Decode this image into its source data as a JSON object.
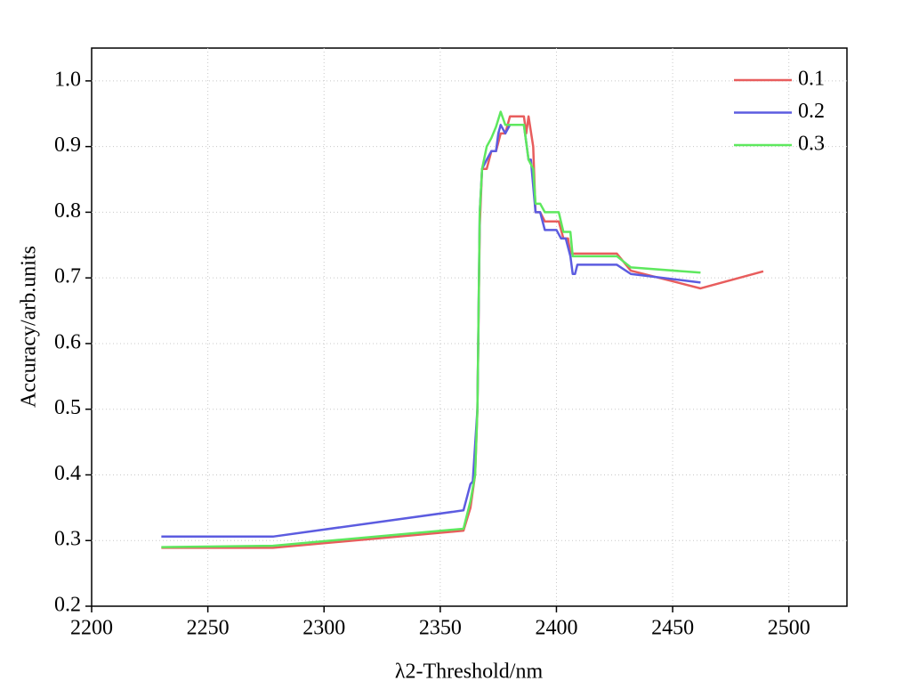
{
  "chart_data": {
    "type": "line",
    "xlabel": "λ2-Threshold/nm",
    "ylabel": "Accuracy/arb.units",
    "xlim": [
      2200,
      2525
    ],
    "ylim": [
      0.2,
      1.05
    ],
    "xticks": [
      2200,
      2250,
      2300,
      2350,
      2400,
      2450,
      2500
    ],
    "yticks": [
      {
        "value": 0.2,
        "label": "0.2"
      },
      {
        "value": 0.3,
        "label": "0.3"
      },
      {
        "value": 0.4,
        "label": "0.4"
      },
      {
        "value": 0.5,
        "label": "0.5"
      },
      {
        "value": 0.6,
        "label": "0.6"
      },
      {
        "value": 0.7,
        "label": "0.7"
      },
      {
        "value": 0.8,
        "label": "0.8"
      },
      {
        "value": 0.9,
        "label": "0.9"
      },
      {
        "value": 1.0,
        "label": "1.0"
      }
    ],
    "grid": true,
    "legend": "upper right",
    "series": [
      {
        "name": "0.1",
        "color": "#e85d5d",
        "x": [
          2230,
          2278,
          2360,
          2363,
          2365,
          2366,
          2367,
          2368,
          2370,
          2372,
          2374,
          2376,
          2378,
          2380,
          2386,
          2387,
          2388,
          2390,
          2391,
          2393,
          2395,
          2401,
          2403,
          2405,
          2406,
          2426,
          2432,
          2462,
          2489
        ],
        "values": [
          0.289,
          0.289,
          0.315,
          0.35,
          0.4,
          0.5,
          0.78,
          0.866,
          0.866,
          0.893,
          0.893,
          0.92,
          0.92,
          0.946,
          0.946,
          0.92,
          0.946,
          0.9,
          0.8,
          0.8,
          0.786,
          0.786,
          0.76,
          0.76,
          0.737,
          0.737,
          0.711,
          0.684,
          0.71
        ]
      },
      {
        "name": "0.2",
        "color": "#5c5ce0",
        "x": [
          2230,
          2278,
          2360,
          2363,
          2364,
          2366,
          2367,
          2368,
          2370,
          2372,
          2374,
          2375,
          2376,
          2378,
          2380,
          2386,
          2388,
          2389,
          2391,
          2393,
          2395,
          2400,
          2402,
          2404,
          2406,
          2407,
          2408,
          2409,
          2426,
          2432,
          2462
        ],
        "values": [
          0.306,
          0.306,
          0.346,
          0.386,
          0.39,
          0.5,
          0.8,
          0.866,
          0.88,
          0.893,
          0.893,
          0.92,
          0.933,
          0.92,
          0.933,
          0.933,
          0.88,
          0.88,
          0.8,
          0.8,
          0.773,
          0.773,
          0.76,
          0.76,
          0.733,
          0.706,
          0.706,
          0.72,
          0.72,
          0.706,
          0.693
        ]
      },
      {
        "name": "0.3",
        "color": "#5ee85e",
        "x": [
          2230,
          2278,
          2360,
          2363,
          2365,
          2366,
          2367,
          2368,
          2370,
          2372,
          2374,
          2376,
          2378,
          2380,
          2386,
          2388,
          2390,
          2391,
          2393,
          2395,
          2401,
          2403,
          2406,
          2407,
          2426,
          2432,
          2462
        ],
        "values": [
          0.29,
          0.292,
          0.318,
          0.36,
          0.4,
          0.5,
          0.8,
          0.866,
          0.9,
          0.913,
          0.93,
          0.953,
          0.933,
          0.933,
          0.933,
          0.88,
          0.866,
          0.813,
          0.813,
          0.8,
          0.8,
          0.77,
          0.77,
          0.733,
          0.733,
          0.716,
          0.708
        ]
      }
    ]
  }
}
